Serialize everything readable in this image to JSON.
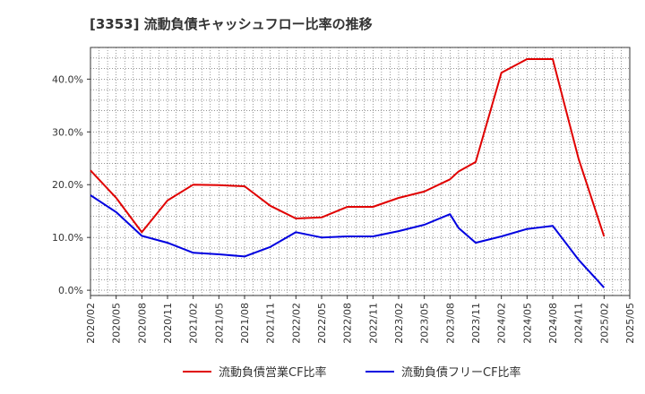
{
  "chart_data": {
    "type": "line",
    "title": "[3353]  流動負債キャッシュフロー比率の推移",
    "ylim": [
      -1,
      46
    ],
    "yticks": [
      0,
      10,
      20,
      30,
      40
    ],
    "ytick_labels": [
      "0.0%",
      "10.0%",
      "20.0%",
      "30.0%",
      "40.0%"
    ],
    "xlim": [
      "2020-02",
      "2025-05"
    ],
    "xtick_labels": [
      "2020/02",
      "2020/05",
      "2020/08",
      "2020/11",
      "2021/02",
      "2021/05",
      "2021/08",
      "2021/11",
      "2022/02",
      "2022/05",
      "2022/08",
      "2022/11",
      "2023/02",
      "2023/05",
      "2023/08",
      "2023/11",
      "2024/02",
      "2024/05",
      "2024/08",
      "2024/11",
      "2025/02",
      "2025/05"
    ],
    "grid": true,
    "legend_position": "bottom",
    "series": [
      {
        "name": "流動負債営業CF比率",
        "color": "#e00000",
        "points": [
          [
            "2020-02",
            22.7
          ],
          [
            "2020-05",
            17.5
          ],
          [
            "2020-08",
            11.0
          ],
          [
            "2020-11",
            17.0
          ],
          [
            "2021-02",
            20.0
          ],
          [
            "2021-05",
            19.9
          ],
          [
            "2021-08",
            19.7
          ],
          [
            "2021-11",
            16.0
          ],
          [
            "2022-02",
            13.6
          ],
          [
            "2022-05",
            13.8
          ],
          [
            "2022-08",
            15.8
          ],
          [
            "2022-11",
            15.8
          ],
          [
            "2023-02",
            17.5
          ],
          [
            "2023-05",
            18.7
          ],
          [
            "2023-08",
            21.0
          ],
          [
            "2023-09",
            22.5
          ],
          [
            "2023-11",
            24.3
          ],
          [
            "2024-02",
            41.2
          ],
          [
            "2024-05",
            43.8
          ],
          [
            "2024-08",
            43.8
          ],
          [
            "2024-11",
            25.0
          ],
          [
            "2025-02",
            10.2
          ]
        ]
      },
      {
        "name": "流動負債フリーCF比率",
        "color": "#0000e0",
        "points": [
          [
            "2020-02",
            18.0
          ],
          [
            "2020-05",
            14.8
          ],
          [
            "2020-08",
            10.3
          ],
          [
            "2020-11",
            9.0
          ],
          [
            "2021-02",
            7.1
          ],
          [
            "2021-05",
            6.8
          ],
          [
            "2021-08",
            6.4
          ],
          [
            "2021-11",
            8.2
          ],
          [
            "2022-02",
            11.0
          ],
          [
            "2022-05",
            10.0
          ],
          [
            "2022-08",
            10.2
          ],
          [
            "2022-11",
            10.2
          ],
          [
            "2023-02",
            11.2
          ],
          [
            "2023-05",
            12.4
          ],
          [
            "2023-08",
            14.4
          ],
          [
            "2023-09",
            11.8
          ],
          [
            "2023-11",
            9.0
          ],
          [
            "2024-02",
            10.2
          ],
          [
            "2024-05",
            11.6
          ],
          [
            "2024-08",
            12.2
          ],
          [
            "2024-11",
            5.8
          ],
          [
            "2025-02",
            0.5
          ]
        ]
      }
    ]
  }
}
